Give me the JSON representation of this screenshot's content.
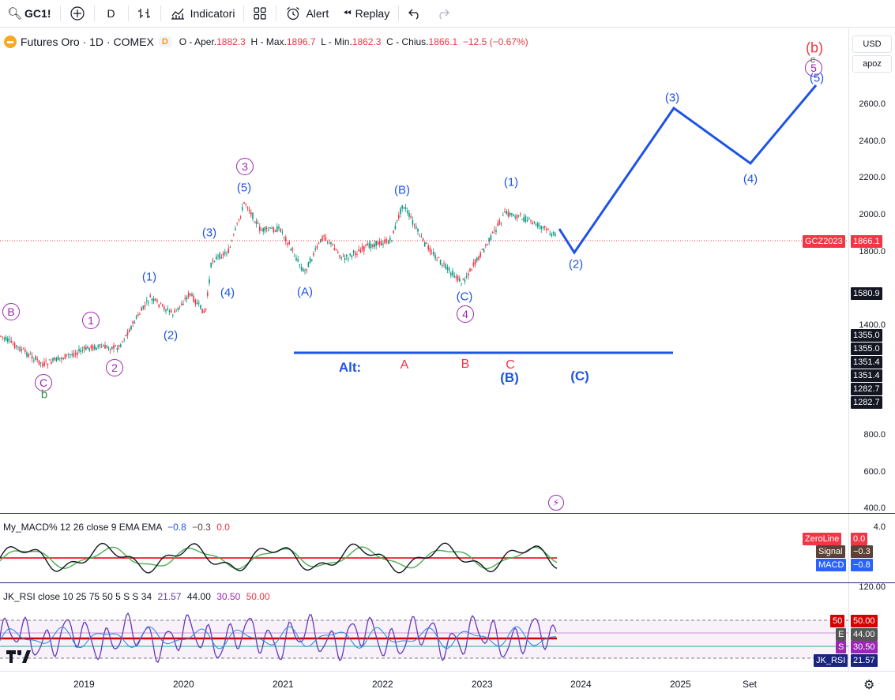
{
  "toolbar": {
    "symbol": "GC1!",
    "interval": "D",
    "indicators_label": "Indicatori",
    "alert_label": "Alert",
    "replay_label": "Replay"
  },
  "legend": {
    "title": "Futures Oro · 1D · COMEX",
    "badge": "D",
    "open_label": "O - Aper.",
    "open": "1882.3",
    "high_label": "H - Max.",
    "high": "1896.7",
    "low_label": "L - Min.",
    "low": "1862.3",
    "close_label": "C - Chius.",
    "close": "1866.1",
    "change": "−12.5 (−0.67%)"
  },
  "right_controls": {
    "currency": "USD",
    "scale": "apoz"
  },
  "price_axis": [
    "2600.0",
    "2400.0",
    "2200.0",
    "2000.0",
    "1800.0",
    "1400.0",
    "800.0",
    "600.0",
    "400.0"
  ],
  "price_tags": {
    "symbol_tag": "GCZ2023",
    "last": "1866.1",
    "t1": "1580.9",
    "t2": "1355.0",
    "t3": "1355.0",
    "t4": "1351.4",
    "t5": "1351.4",
    "t6": "1282.7",
    "t7": "1282.7"
  },
  "macd": {
    "legend": "My_MACD% 12 26 close 9 EMA EMA",
    "v1": "−0.8",
    "v2": "−0.3",
    "v3": "0.0",
    "axis_top": "4.0",
    "zeroline_label": "ZeroLine",
    "zeroline_val": "0.0",
    "signal_label": "Signal",
    "signal_val": "−0.3",
    "macd_label": "MACD",
    "macd_val": "−0.8"
  },
  "rsi": {
    "legend": "JK_RSI close 10 25 75 50 5 S S 34",
    "v1": "21.57",
    "v2": "44.00",
    "v3": "30.50",
    "v4": "50.00",
    "axis_top": "120.00",
    "tag50_label": "50",
    "tag50_val": "50.00",
    "tagE_label": "E",
    "tagE_val": "44.00",
    "tagS_label": "S",
    "tagS_val": "30.50",
    "tagJK_label": "JK_RSI",
    "tagJK_val": "21.57"
  },
  "time_axis": [
    "2019",
    "2020",
    "2021",
    "2022",
    "2023",
    "2024",
    "2025",
    "Set"
  ],
  "wave_labels": {
    "b_circ": "B",
    "c_circ": "C",
    "b_small": "b",
    "one_circ": "1",
    "two_circ": "2",
    "three_circ": "3",
    "four_circ": "4",
    "five_circ": "5",
    "w1": "(1)",
    "w2": "(2)",
    "w3": "(3)",
    "w4": "(4)",
    "w5": "(5)",
    "wA": "(A)",
    "wB": "(B)",
    "wC": "(C)",
    "wC2": "(C)",
    "wB2": "(1)",
    "f2": "(2)",
    "f3": "(3)",
    "f4": "(4)",
    "f5": "(5)",
    "alt": "Alt:",
    "altA": "A",
    "altB": "B",
    "altC": "C",
    "altBp": "(B)",
    "altCp": "(C)",
    "top_b": "(b)",
    "top_c": "c"
  },
  "colors": {
    "up": "#089981",
    "down": "#f23645",
    "projection": "#1e53e5",
    "macd_zero": "#f23645",
    "signal": "#4caf50"
  }
}
